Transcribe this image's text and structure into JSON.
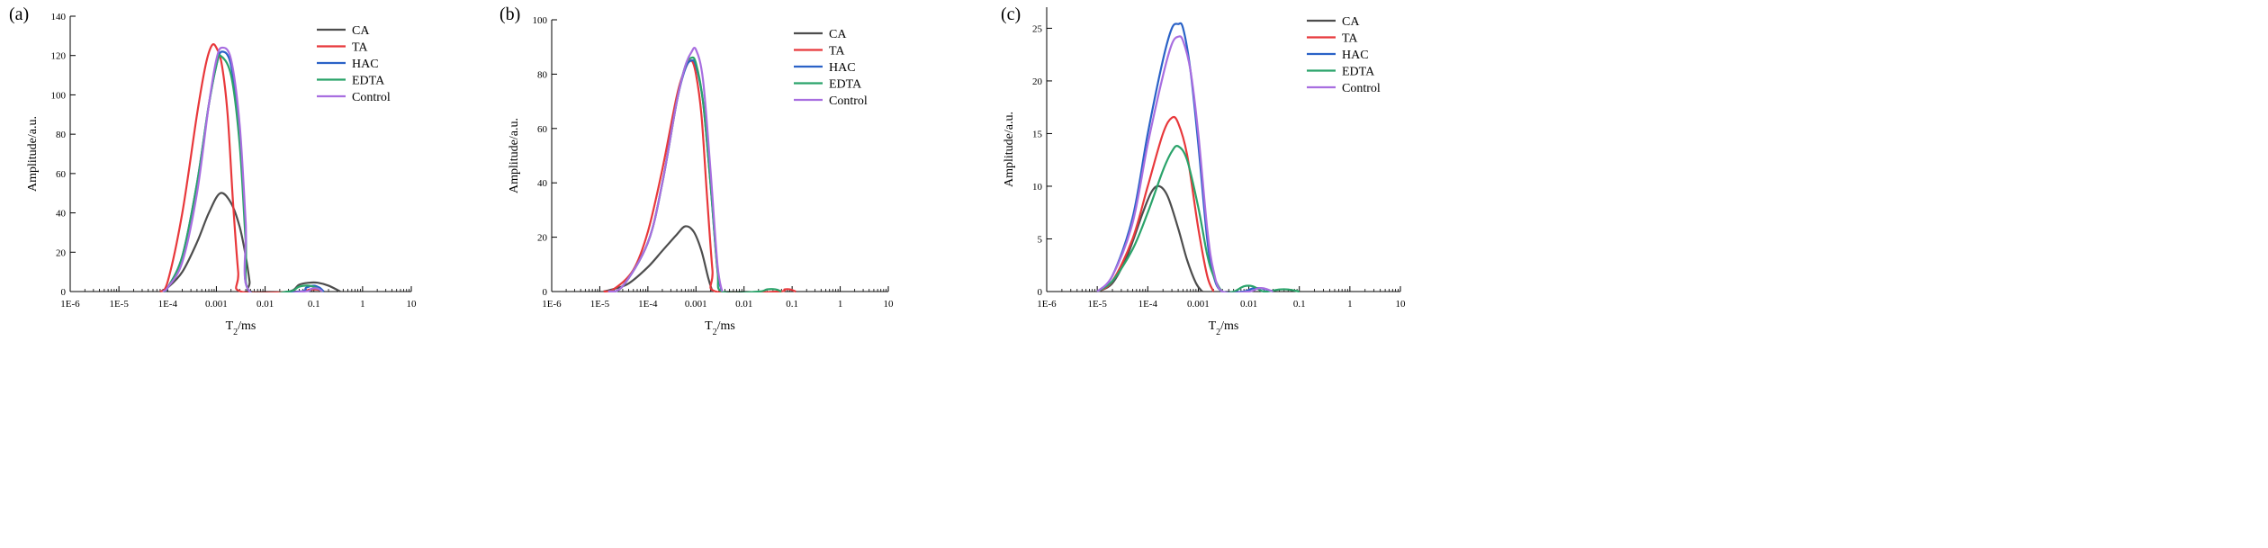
{
  "legend_labels": [
    "CA",
    "TA",
    "HAC",
    "EDTA",
    "Control"
  ],
  "colors": {
    "CA": "#4d4d4d",
    "TA": "#e8383b",
    "HAC": "#2a62c7",
    "EDTA": "#2aa36a",
    "Control": "#a86ee0"
  },
  "chart_data": [
    {
      "panel_label": "(a)",
      "type": "line",
      "xscale": "log",
      "xlabel": "T2/ms",
      "ylabel": "Amplitude/a.u.",
      "xlim": [
        1e-06,
        10
      ],
      "ylim": [
        0,
        140
      ],
      "xticks": [
        "1E-6",
        "1E-5",
        "1E-4",
        "0.001",
        "0.01",
        "0.1",
        "1",
        "10"
      ],
      "yticks": [
        "0",
        "20",
        "40",
        "60",
        "80",
        "100",
        "120",
        "140"
      ],
      "legend": "top-right",
      "series": [
        {
          "name": "CA",
          "x": [
            7e-05,
            0.0001,
            0.0002,
            0.0004,
            0.0007,
            0.0012,
            0.002,
            0.003,
            0.004,
            0.0048,
            0.005,
            0.03,
            0.05,
            0.08,
            0.12,
            0.2,
            0.35
          ],
          "y": [
            0,
            2,
            10,
            25,
            40,
            50,
            45,
            33,
            18,
            5,
            0,
            0,
            3.5,
            4.5,
            4.5,
            3,
            0
          ]
        },
        {
          "name": "TA",
          "x": [
            7e-05,
            0.0001,
            0.0002,
            0.0004,
            0.0006,
            0.0008,
            0.001,
            0.0013,
            0.0017,
            0.0022,
            0.0028,
            0.0032,
            0.05,
            0.08,
            0.12,
            0.15
          ],
          "y": [
            0,
            5,
            40,
            90,
            115,
            125,
            124,
            115,
            90,
            45,
            10,
            0,
            0,
            1,
            1,
            0
          ]
        },
        {
          "name": "HAC",
          "x": [
            8e-05,
            0.0001,
            0.0002,
            0.0004,
            0.0007,
            0.001,
            0.0013,
            0.002,
            0.003,
            0.004,
            0.0048,
            0.05,
            0.07,
            0.1,
            0.13,
            0.16
          ],
          "y": [
            0,
            2,
            18,
            55,
            95,
            115,
            122,
            115,
            80,
            30,
            0,
            0,
            2,
            3,
            2,
            0
          ]
        },
        {
          "name": "EDTA",
          "x": [
            8e-05,
            0.0001,
            0.0002,
            0.0004,
            0.0007,
            0.001,
            0.0012,
            0.002,
            0.003,
            0.004,
            0.0048,
            0.03,
            0.05,
            0.08,
            0.11,
            0.15
          ],
          "y": [
            0,
            2,
            18,
            55,
            95,
            115,
            120,
            110,
            75,
            25,
            0,
            0,
            2.5,
            3,
            2,
            0
          ]
        },
        {
          "name": "Control",
          "x": [
            8e-05,
            0.0001,
            0.0002,
            0.0004,
            0.0007,
            0.001,
            0.0013,
            0.002,
            0.003,
            0.004,
            0.0048,
            0.06,
            0.09,
            0.12,
            0.15
          ],
          "y": [
            0,
            2,
            15,
            50,
            95,
            118,
            124,
            118,
            85,
            35,
            0,
            0,
            1.5,
            1.5,
            0
          ]
        }
      ]
    },
    {
      "panel_label": "(b)",
      "type": "line",
      "xscale": "log",
      "xlabel": "T2/ms",
      "ylabel": "Amplitude/a.u.",
      "xlim": [
        1e-06,
        10
      ],
      "ylim": [
        0,
        100
      ],
      "xticks": [
        "1E-6",
        "1E-5",
        "1E-4",
        "0.001",
        "0.01",
        "0.1",
        "1",
        "10"
      ],
      "yticks": [
        "0",
        "20",
        "40",
        "60",
        "80",
        "100"
      ],
      "legend": "top-right",
      "series": [
        {
          "name": "CA",
          "x": [
            1.2e-05,
            2e-05,
            4e-05,
            0.0001,
            0.0002,
            0.0004,
            0.0006,
            0.0009,
            0.0013,
            0.0018,
            0.0022
          ],
          "y": [
            0,
            1,
            3,
            9,
            15,
            21,
            24,
            22,
            15,
            5,
            0
          ]
        },
        {
          "name": "TA",
          "x": [
            1.2e-05,
            2e-05,
            5e-05,
            0.0001,
            0.0002,
            0.0004,
            0.0006,
            0.0008,
            0.001,
            0.0013,
            0.0017,
            0.0022,
            0.0026,
            0.05,
            0.07,
            0.09,
            0.12
          ],
          "y": [
            0,
            1,
            8,
            22,
            45,
            72,
            82,
            85,
            80,
            65,
            35,
            8,
            0,
            0,
            0.8,
            0.8,
            0
          ]
        },
        {
          "name": "HAC",
          "x": [
            1.5e-05,
            3e-05,
            0.0001,
            0.0002,
            0.0004,
            0.0006,
            0.0008,
            0.001,
            0.0014,
            0.002,
            0.0028,
            0.0035
          ],
          "y": [
            0,
            2,
            18,
            40,
            70,
            82,
            85,
            83,
            70,
            40,
            8,
            0
          ]
        },
        {
          "name": "EDTA",
          "x": [
            1.5e-05,
            3e-05,
            0.0001,
            0.0002,
            0.0004,
            0.0006,
            0.0008,
            0.001,
            0.0014,
            0.002,
            0.0028,
            0.0035,
            0.02,
            0.03,
            0.045,
            0.06
          ],
          "y": [
            0,
            2,
            18,
            40,
            70,
            83,
            86,
            84,
            70,
            40,
            8,
            0,
            0,
            0.8,
            0.8,
            0
          ]
        },
        {
          "name": "Control",
          "x": [
            1.5e-05,
            3e-05,
            0.0001,
            0.0002,
            0.0004,
            0.0006,
            0.0008,
            0.001,
            0.0014,
            0.002,
            0.0028,
            0.0035
          ],
          "y": [
            0,
            2,
            18,
            40,
            70,
            83,
            88,
            89,
            78,
            45,
            10,
            0
          ]
        }
      ]
    },
    {
      "panel_label": "(c)",
      "type": "line",
      "xscale": "log",
      "xlabel": "T2/ms",
      "ylabel": "Amplitude/a.u.",
      "xlim": [
        1e-06,
        10
      ],
      "ylim": [
        0,
        27
      ],
      "xticks": [
        "1E-6",
        "1E-5",
        "1E-4",
        "0.001",
        "0.01",
        "0.1",
        "1",
        "10"
      ],
      "yticks": [
        "0",
        "5",
        "10",
        "15",
        "20",
        "25"
      ],
      "legend": "top-right",
      "series": [
        {
          "name": "CA",
          "x": [
            1e-05,
            2e-05,
            4e-05,
            8e-05,
            0.00012,
            0.00017,
            0.00025,
            0.0004,
            0.0006,
            0.0009,
            0.0012
          ],
          "y": [
            0,
            0.8,
            3.5,
            7.5,
            9.5,
            10,
            9,
            6,
            3,
            0.8,
            0
          ]
        },
        {
          "name": "TA",
          "x": [
            1e-05,
            2e-05,
            5e-05,
            0.0001,
            0.0002,
            0.0003,
            0.0004,
            0.0006,
            0.001,
            0.0015,
            0.002
          ],
          "y": [
            0,
            1,
            5,
            10,
            15,
            16.5,
            16,
            13,
            6,
            1.5,
            0
          ]
        },
        {
          "name": "HAC",
          "x": [
            1e-05,
            2e-05,
            5e-05,
            0.0001,
            0.0002,
            0.0003,
            0.0004,
            0.0005,
            0.0007,
            0.001,
            0.0015,
            0.002,
            0.003,
            0.008,
            0.012,
            0.018,
            0.03
          ],
          "y": [
            0,
            1.5,
            7,
            15,
            22,
            25,
            25.4,
            25,
            21,
            14,
            5,
            1.5,
            0,
            0,
            0.3,
            0.3,
            0
          ]
        },
        {
          "name": "EDTA",
          "x": [
            1e-05,
            2e-05,
            5e-05,
            0.0001,
            0.0002,
            0.0003,
            0.0004,
            0.0006,
            0.001,
            0.0015,
            0.002,
            0.003,
            0.005,
            0.008,
            0.012,
            0.02,
            0.04,
            0.06,
            0.1
          ],
          "y": [
            0,
            1,
            4,
            7.5,
            11.5,
            13.3,
            13.8,
            12.5,
            8,
            3.5,
            1.5,
            0,
            0,
            0.5,
            0.5,
            0,
            0.2,
            0.2,
            0
          ]
        },
        {
          "name": "Control",
          "x": [
            1e-05,
            2e-05,
            5e-05,
            0.0001,
            0.0002,
            0.0003,
            0.0004,
            0.0005,
            0.0007,
            0.001,
            0.0015,
            0.002,
            0.003,
            0.01,
            0.015,
            0.02,
            0.03
          ],
          "y": [
            0,
            1.5,
            6.5,
            14,
            20.5,
            23.5,
            24.2,
            23.8,
            21,
            15,
            6,
            2,
            0,
            0,
            0.3,
            0.3,
            0
          ]
        }
      ]
    }
  ]
}
